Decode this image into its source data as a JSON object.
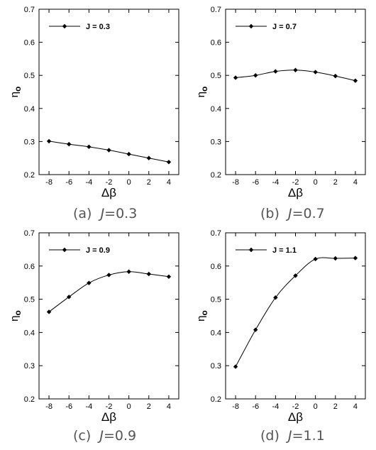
{
  "chart_data": [
    {
      "type": "line",
      "panel_label": "(a)",
      "caption_var": "J",
      "caption_value": "=0.3",
      "xlabel": "Δβ",
      "ylabel": "η",
      "ylabel_sub": "o",
      "xlim": [
        -9,
        5
      ],
      "ylim": [
        0.2,
        0.7
      ],
      "xticks": [
        -8,
        -6,
        -4,
        -2,
        0,
        2,
        4
      ],
      "yticks": [
        0.2,
        0.3,
        0.4,
        0.5,
        0.6,
        0.7
      ],
      "legend_position": "top-left",
      "series": [
        {
          "name": "J = 0.3",
          "x": [
            -8,
            -6,
            -4,
            -2,
            0,
            2,
            4
          ],
          "y": [
            0.301,
            0.292,
            0.284,
            0.274,
            0.262,
            0.25,
            0.238
          ]
        }
      ]
    },
    {
      "type": "line",
      "panel_label": "(b)",
      "caption_var": "J",
      "caption_value": "=0.7",
      "xlabel": "Δβ",
      "ylabel": "η",
      "ylabel_sub": "o",
      "xlim": [
        -9,
        5
      ],
      "ylim": [
        0.2,
        0.7
      ],
      "xticks": [
        -8,
        -6,
        -4,
        -2,
        0,
        2,
        4
      ],
      "yticks": [
        0.2,
        0.3,
        0.4,
        0.5,
        0.6,
        0.7
      ],
      "legend_position": "top-left",
      "series": [
        {
          "name": "J = 0.7",
          "x": [
            -8,
            -6,
            -4,
            -2,
            0,
            2,
            4
          ],
          "y": [
            0.493,
            0.5,
            0.512,
            0.516,
            0.51,
            0.498,
            0.484
          ]
        }
      ]
    },
    {
      "type": "line",
      "panel_label": "(c)",
      "caption_var": "J",
      "caption_value": "=0.9",
      "xlabel": "Δβ",
      "ylabel": "η",
      "ylabel_sub": "o",
      "xlim": [
        -9,
        5
      ],
      "ylim": [
        0.2,
        0.7
      ],
      "xticks": [
        -8,
        -6,
        -4,
        -2,
        0,
        2,
        4
      ],
      "yticks": [
        0.2,
        0.3,
        0.4,
        0.5,
        0.6,
        0.7
      ],
      "legend_position": "top-left",
      "series": [
        {
          "name": "J = 0.9",
          "x": [
            -8,
            -6,
            -4,
            -2,
            0,
            2,
            4
          ],
          "y": [
            0.462,
            0.507,
            0.549,
            0.573,
            0.583,
            0.576,
            0.568
          ]
        }
      ]
    },
    {
      "type": "line",
      "panel_label": "(d)",
      "caption_var": "J",
      "caption_value": "=1.1",
      "xlabel": "Δβ",
      "ylabel": "η",
      "ylabel_sub": "o",
      "xlim": [
        -9,
        5
      ],
      "ylim": [
        0.2,
        0.7
      ],
      "xticks": [
        -8,
        -6,
        -4,
        -2,
        0,
        2,
        4
      ],
      "yticks": [
        0.2,
        0.3,
        0.4,
        0.5,
        0.6,
        0.7
      ],
      "legend_position": "top-left",
      "series": [
        {
          "name": "J = 1.1",
          "x": [
            -8,
            -6,
            -4,
            -2,
            0,
            2,
            4
          ],
          "y": [
            0.297,
            0.408,
            0.505,
            0.571,
            0.621,
            0.623,
            0.624
          ]
        }
      ]
    }
  ]
}
